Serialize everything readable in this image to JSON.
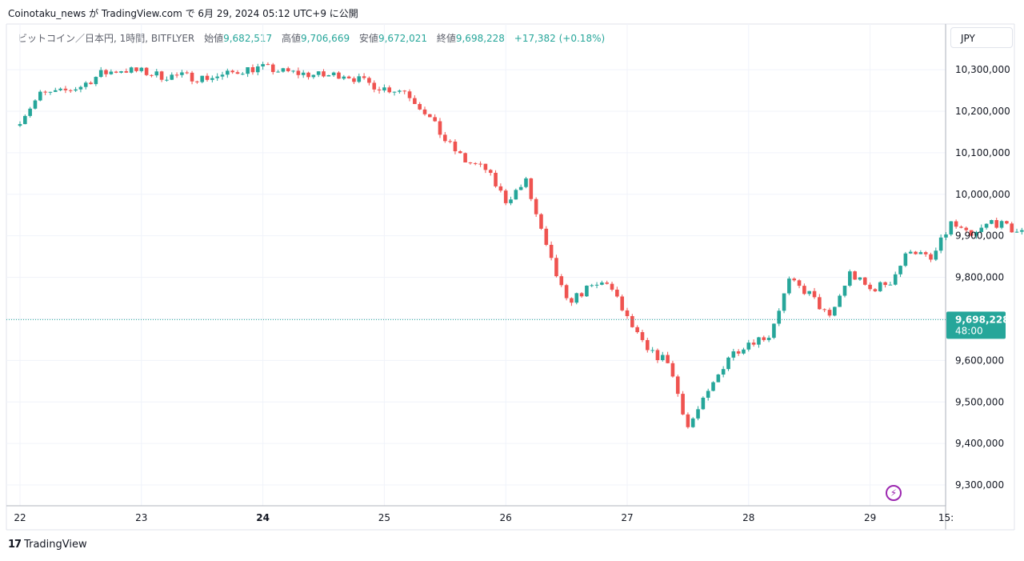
{
  "header": {
    "caption": "Coinotaku_news が TradingView.com で 6月 29, 2024 05:12 UTC+9 に公開"
  },
  "legend": {
    "symbol": "ビットコイン／日本円, 1時間, BITFLYER",
    "open_label": "始値",
    "open_value": "9,682,517",
    "high_label": "高値",
    "high_value": "9,706,669",
    "low_label": "安値",
    "low_value": "9,672,021",
    "close_label": "終値",
    "close_value": "9,698,228",
    "change": "+17,382 (+0.18%)"
  },
  "currency_button": "JPY",
  "last_price": {
    "value": "9,698,228",
    "countdown": "48:00"
  },
  "footer": {
    "brand": "TradingView"
  },
  "icons": {
    "alert": "lightning-bolt-icon",
    "logo": "tradingview-logo-icon"
  },
  "colors": {
    "up": "#26a69a",
    "down": "#ef5350",
    "grid": "#f0f3fa",
    "price_line": "#26a69a"
  },
  "chart_data": {
    "type": "candlestick",
    "x_tick_labels": [
      "22",
      "23",
      "24",
      "25",
      "26",
      "27",
      "28",
      "29",
      "15:"
    ],
    "y_tick_labels": [
      "10,300,000",
      "10,200,000",
      "10,100,000",
      "10,000,000",
      "9,900,000",
      "9,800,000",
      "9,700,000",
      "9,600,000",
      "9,500,000",
      "9,400,000",
      "9,300,000"
    ],
    "ylim": [
      9250000,
      10410000
    ],
    "interval": "1h",
    "price_scale_currency": "JPY",
    "candles_per_day": 24,
    "start_day": 22,
    "close_path": [
      [
        0,
        10180000
      ],
      [
        4,
        10240000
      ],
      [
        8,
        10245000
      ],
      [
        12,
        10260000
      ],
      [
        16,
        10290000
      ],
      [
        20,
        10300000
      ],
      [
        24,
        10295000
      ],
      [
        28,
        10285000
      ],
      [
        32,
        10285000
      ],
      [
        36,
        10280000
      ],
      [
        40,
        10285000
      ],
      [
        44,
        10300000
      ],
      [
        48,
        10305000
      ],
      [
        52,
        10295000
      ],
      [
        56,
        10290000
      ],
      [
        60,
        10285000
      ],
      [
        64,
        10290000
      ],
      [
        68,
        10270000
      ],
      [
        72,
        10255000
      ],
      [
        76,
        10250000
      ],
      [
        80,
        10200000
      ],
      [
        84,
        10130000
      ],
      [
        88,
        10080000
      ],
      [
        92,
        10060000
      ],
      [
        96,
        9985000
      ],
      [
        100,
        10030000
      ],
      [
        104,
        9870000
      ],
      [
        108,
        9740000
      ],
      [
        112,
        9770000
      ],
      [
        116,
        9790000
      ],
      [
        120,
        9700000
      ],
      [
        124,
        9620000
      ],
      [
        128,
        9600000
      ],
      [
        132,
        9440000
      ],
      [
        136,
        9520000
      ],
      [
        140,
        9610000
      ],
      [
        144,
        9645000
      ],
      [
        148,
        9660000
      ],
      [
        152,
        9790000
      ],
      [
        156,
        9760000
      ],
      [
        160,
        9700000
      ],
      [
        164,
        9810000
      ],
      [
        168,
        9770000
      ],
      [
        172,
        9790000
      ],
      [
        176,
        9870000
      ],
      [
        180,
        9840000
      ],
      [
        184,
        9930000
      ],
      [
        188,
        9895000
      ],
      [
        192,
        9935000
      ],
      [
        196,
        9915000
      ],
      [
        200,
        9900000
      ],
      [
        204,
        9870000
      ],
      [
        208,
        9860000
      ],
      [
        212,
        9830000
      ],
      [
        216,
        9885000
      ],
      [
        220,
        9935000
      ],
      [
        224,
        9880000
      ],
      [
        228,
        9810000
      ],
      [
        232,
        9800000
      ],
      [
        236,
        9800000
      ],
      [
        240,
        9790000
      ],
      [
        244,
        9805000
      ],
      [
        248,
        9770000
      ],
      [
        252,
        9765000
      ],
      [
        256,
        9790000
      ],
      [
        260,
        9845000
      ],
      [
        264,
        9870000
      ],
      [
        268,
        9950000
      ],
      [
        272,
        9900000
      ],
      [
        276,
        9940000
      ],
      [
        280,
        9890000
      ],
      [
        284,
        9900000
      ],
      [
        288,
        9910000
      ],
      [
        292,
        10000000
      ],
      [
        296,
        9960000
      ],
      [
        300,
        9930000
      ],
      [
        304,
        9890000
      ],
      [
        308,
        9900000
      ],
      [
        312,
        9880000
      ],
      [
        316,
        9840000
      ],
      [
        320,
        9800000
      ],
      [
        324,
        9788000
      ],
      [
        325,
        9760000
      ],
      [
        326,
        9690000
      ],
      [
        328,
        9698228
      ]
    ]
  }
}
